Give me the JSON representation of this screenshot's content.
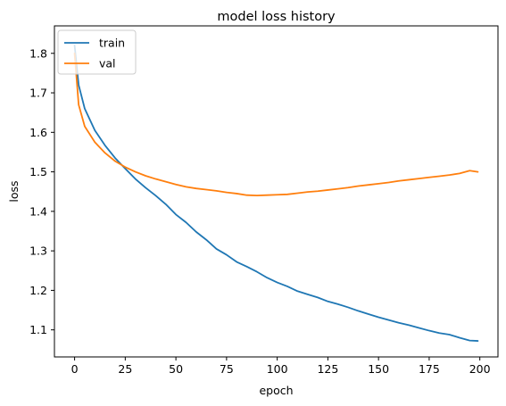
{
  "chart_data": {
    "type": "line",
    "title": "model loss history",
    "xlabel": "epoch",
    "ylabel": "loss",
    "xlim": [
      -9.95,
      208.95
    ],
    "ylim": [
      1.0315,
      1.8695
    ],
    "xticks": [
      0,
      25,
      50,
      75,
      100,
      125,
      150,
      175,
      200
    ],
    "xtick_labels": [
      "0",
      "25",
      "50",
      "75",
      "100",
      "125",
      "150",
      "175",
      "200"
    ],
    "yticks": [
      1.1,
      1.2,
      1.3,
      1.4,
      1.5,
      1.6,
      1.7,
      1.8
    ],
    "ytick_labels": [
      "1.1",
      "1.2",
      "1.3",
      "1.4",
      "1.5",
      "1.6",
      "1.7",
      "1.8"
    ],
    "grid": false,
    "legend": {
      "position": "upper left"
    },
    "series": [
      {
        "name": "train",
        "color": "#1f77b4",
        "x": [
          0,
          2,
          5,
          10,
          15,
          20,
          25,
          30,
          35,
          40,
          45,
          50,
          55,
          60,
          65,
          70,
          75,
          80,
          85,
          90,
          95,
          100,
          105,
          110,
          115,
          120,
          125,
          130,
          135,
          140,
          145,
          150,
          155,
          160,
          165,
          170,
          175,
          180,
          185,
          190,
          195,
          199
        ],
        "y": [
          1.82,
          1.72,
          1.66,
          1.605,
          1.567,
          1.535,
          1.508,
          1.482,
          1.46,
          1.44,
          1.418,
          1.392,
          1.372,
          1.348,
          1.328,
          1.305,
          1.29,
          1.272,
          1.26,
          1.247,
          1.232,
          1.22,
          1.21,
          1.198,
          1.19,
          1.182,
          1.172,
          1.165,
          1.157,
          1.148,
          1.14,
          1.132,
          1.125,
          1.118,
          1.112,
          1.105,
          1.098,
          1.092,
          1.088,
          1.08,
          1.073,
          1.072
        ]
      },
      {
        "name": "val",
        "color": "#ff7f0e",
        "x": [
          0,
          2,
          5,
          10,
          15,
          20,
          25,
          30,
          35,
          40,
          45,
          50,
          55,
          60,
          65,
          70,
          75,
          80,
          85,
          90,
          95,
          100,
          105,
          110,
          115,
          120,
          125,
          130,
          135,
          140,
          145,
          150,
          155,
          160,
          165,
          170,
          175,
          180,
          185,
          190,
          195,
          199
        ],
        "y": [
          1.8,
          1.67,
          1.615,
          1.575,
          1.548,
          1.527,
          1.512,
          1.5,
          1.49,
          1.482,
          1.475,
          1.468,
          1.462,
          1.458,
          1.455,
          1.452,
          1.448,
          1.445,
          1.441,
          1.44,
          1.441,
          1.442,
          1.443,
          1.446,
          1.449,
          1.451,
          1.454,
          1.457,
          1.46,
          1.464,
          1.467,
          1.47,
          1.473,
          1.477,
          1.48,
          1.483,
          1.486,
          1.489,
          1.492,
          1.496,
          1.503,
          1.5
        ]
      }
    ]
  }
}
